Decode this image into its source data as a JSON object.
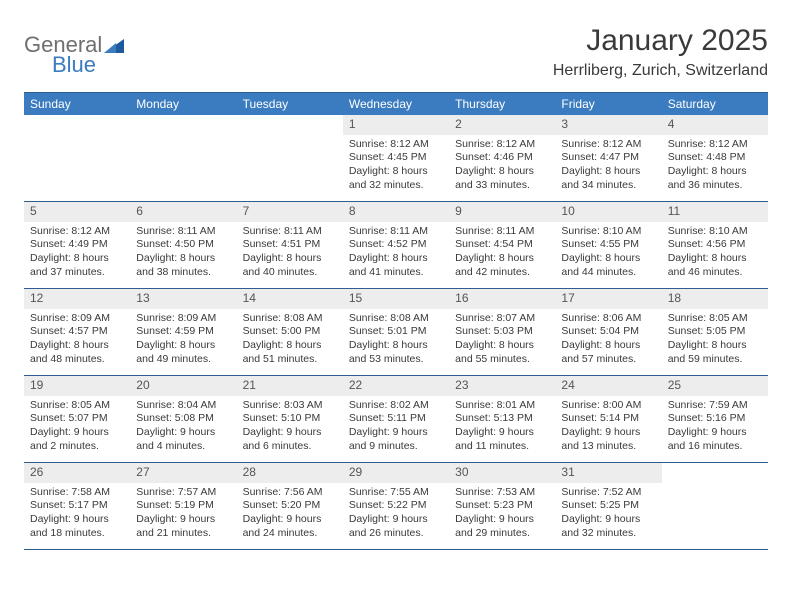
{
  "brand": {
    "part1": "General",
    "part2": "Blue"
  },
  "title": "January 2025",
  "location": "Herrliberg, Zurich, Switzerland",
  "colors": {
    "header_bg": "#3b7bbf",
    "header_text": "#ffffff",
    "rule": "#2f5d8f",
    "daynum_bg": "#ededed",
    "text": "#3a3a3a"
  },
  "dayNames": [
    "Sunday",
    "Monday",
    "Tuesday",
    "Wednesday",
    "Thursday",
    "Friday",
    "Saturday"
  ],
  "weeks": [
    [
      {
        "n": "",
        "sunrise": "",
        "sunset": "",
        "dayl": ""
      },
      {
        "n": "",
        "sunrise": "",
        "sunset": "",
        "dayl": ""
      },
      {
        "n": "",
        "sunrise": "",
        "sunset": "",
        "dayl": ""
      },
      {
        "n": "1",
        "sunrise": "8:12 AM",
        "sunset": "4:45 PM",
        "dayl": "8 hours and 32 minutes."
      },
      {
        "n": "2",
        "sunrise": "8:12 AM",
        "sunset": "4:46 PM",
        "dayl": "8 hours and 33 minutes."
      },
      {
        "n": "3",
        "sunrise": "8:12 AM",
        "sunset": "4:47 PM",
        "dayl": "8 hours and 34 minutes."
      },
      {
        "n": "4",
        "sunrise": "8:12 AM",
        "sunset": "4:48 PM",
        "dayl": "8 hours and 36 minutes."
      }
    ],
    [
      {
        "n": "5",
        "sunrise": "8:12 AM",
        "sunset": "4:49 PM",
        "dayl": "8 hours and 37 minutes."
      },
      {
        "n": "6",
        "sunrise": "8:11 AM",
        "sunset": "4:50 PM",
        "dayl": "8 hours and 38 minutes."
      },
      {
        "n": "7",
        "sunrise": "8:11 AM",
        "sunset": "4:51 PM",
        "dayl": "8 hours and 40 minutes."
      },
      {
        "n": "8",
        "sunrise": "8:11 AM",
        "sunset": "4:52 PM",
        "dayl": "8 hours and 41 minutes."
      },
      {
        "n": "9",
        "sunrise": "8:11 AM",
        "sunset": "4:54 PM",
        "dayl": "8 hours and 42 minutes."
      },
      {
        "n": "10",
        "sunrise": "8:10 AM",
        "sunset": "4:55 PM",
        "dayl": "8 hours and 44 minutes."
      },
      {
        "n": "11",
        "sunrise": "8:10 AM",
        "sunset": "4:56 PM",
        "dayl": "8 hours and 46 minutes."
      }
    ],
    [
      {
        "n": "12",
        "sunrise": "8:09 AM",
        "sunset": "4:57 PM",
        "dayl": "8 hours and 48 minutes."
      },
      {
        "n": "13",
        "sunrise": "8:09 AM",
        "sunset": "4:59 PM",
        "dayl": "8 hours and 49 minutes."
      },
      {
        "n": "14",
        "sunrise": "8:08 AM",
        "sunset": "5:00 PM",
        "dayl": "8 hours and 51 minutes."
      },
      {
        "n": "15",
        "sunrise": "8:08 AM",
        "sunset": "5:01 PM",
        "dayl": "8 hours and 53 minutes."
      },
      {
        "n": "16",
        "sunrise": "8:07 AM",
        "sunset": "5:03 PM",
        "dayl": "8 hours and 55 minutes."
      },
      {
        "n": "17",
        "sunrise": "8:06 AM",
        "sunset": "5:04 PM",
        "dayl": "8 hours and 57 minutes."
      },
      {
        "n": "18",
        "sunrise": "8:05 AM",
        "sunset": "5:05 PM",
        "dayl": "8 hours and 59 minutes."
      }
    ],
    [
      {
        "n": "19",
        "sunrise": "8:05 AM",
        "sunset": "5:07 PM",
        "dayl": "9 hours and 2 minutes."
      },
      {
        "n": "20",
        "sunrise": "8:04 AM",
        "sunset": "5:08 PM",
        "dayl": "9 hours and 4 minutes."
      },
      {
        "n": "21",
        "sunrise": "8:03 AM",
        "sunset": "5:10 PM",
        "dayl": "9 hours and 6 minutes."
      },
      {
        "n": "22",
        "sunrise": "8:02 AM",
        "sunset": "5:11 PM",
        "dayl": "9 hours and 9 minutes."
      },
      {
        "n": "23",
        "sunrise": "8:01 AM",
        "sunset": "5:13 PM",
        "dayl": "9 hours and 11 minutes."
      },
      {
        "n": "24",
        "sunrise": "8:00 AM",
        "sunset": "5:14 PM",
        "dayl": "9 hours and 13 minutes."
      },
      {
        "n": "25",
        "sunrise": "7:59 AM",
        "sunset": "5:16 PM",
        "dayl": "9 hours and 16 minutes."
      }
    ],
    [
      {
        "n": "26",
        "sunrise": "7:58 AM",
        "sunset": "5:17 PM",
        "dayl": "9 hours and 18 minutes."
      },
      {
        "n": "27",
        "sunrise": "7:57 AM",
        "sunset": "5:19 PM",
        "dayl": "9 hours and 21 minutes."
      },
      {
        "n": "28",
        "sunrise": "7:56 AM",
        "sunset": "5:20 PM",
        "dayl": "9 hours and 24 minutes."
      },
      {
        "n": "29",
        "sunrise": "7:55 AM",
        "sunset": "5:22 PM",
        "dayl": "9 hours and 26 minutes."
      },
      {
        "n": "30",
        "sunrise": "7:53 AM",
        "sunset": "5:23 PM",
        "dayl": "9 hours and 29 minutes."
      },
      {
        "n": "31",
        "sunrise": "7:52 AM",
        "sunset": "5:25 PM",
        "dayl": "9 hours and 32 minutes."
      },
      {
        "n": "",
        "sunrise": "",
        "sunset": "",
        "dayl": ""
      }
    ]
  ],
  "labels": {
    "sunrise": "Sunrise:",
    "sunset": "Sunset:",
    "daylight": "Daylight:"
  }
}
